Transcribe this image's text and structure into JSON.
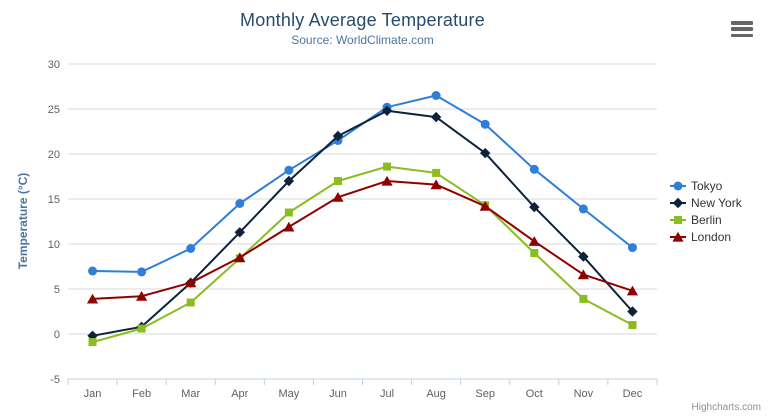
{
  "header": {
    "title": "Monthly Average Temperature",
    "subtitle": "Source: WorldClimate.com",
    "menu_icon": "hamburger-icon"
  },
  "credit": "Highcharts.com",
  "chart_data": {
    "type": "line",
    "title": "Monthly Average Temperature",
    "subtitle": "Source: WorldClimate.com",
    "xlabel": "",
    "ylabel": "Temperature (°C)",
    "categories": [
      "Jan",
      "Feb",
      "Mar",
      "Apr",
      "May",
      "Jun",
      "Jul",
      "Aug",
      "Sep",
      "Oct",
      "Nov",
      "Dec"
    ],
    "ylim": [
      -5,
      30
    ],
    "yticks": [
      -5,
      0,
      5,
      10,
      15,
      20,
      25,
      30
    ],
    "grid": true,
    "legend_position": "right",
    "series": [
      {
        "name": "Tokyo",
        "color": "#2f7ed8",
        "marker": "circle",
        "values": [
          7.0,
          6.9,
          9.5,
          14.5,
          18.2,
          21.5,
          25.2,
          26.5,
          23.3,
          18.3,
          13.9,
          9.6
        ]
      },
      {
        "name": "New York",
        "color": "#0d233a",
        "marker": "diamond",
        "values": [
          -0.2,
          0.8,
          5.7,
          11.3,
          17.0,
          22.0,
          24.8,
          24.1,
          20.1,
          14.1,
          8.6,
          2.5
        ]
      },
      {
        "name": "Berlin",
        "color": "#8bbc21",
        "marker": "square",
        "values": [
          -0.9,
          0.6,
          3.5,
          8.4,
          13.5,
          17.0,
          18.6,
          17.9,
          14.3,
          9.0,
          3.9,
          1.0
        ]
      },
      {
        "name": "London",
        "color": "#910000",
        "marker": "triangle",
        "values": [
          3.9,
          4.2,
          5.7,
          8.5,
          11.9,
          15.2,
          17.0,
          16.6,
          14.2,
          10.3,
          6.6,
          4.8
        ]
      }
    ],
    "style": {
      "grid_color": "#d8d8d8",
      "axis_line_color": "#c0d0e0",
      "tick_color": "#c0d0e0",
      "axis_label_color": "#606060",
      "title_color": "#274b6d",
      "subtitle_color": "#4d759e",
      "legend_text_color": "#333333",
      "credit_color": "#909090",
      "menu_icon_color": "#666666"
    }
  }
}
